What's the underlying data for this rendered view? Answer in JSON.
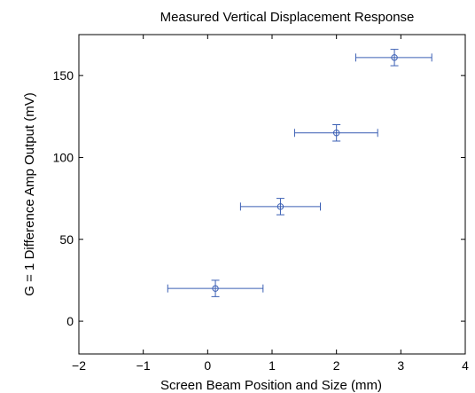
{
  "chart_data": {
    "type": "scatter",
    "title": "Measured Vertical Displacement Response",
    "xlabel": "Screen Beam Position and Size (mm)",
    "ylabel": "G = 1 Difference Amp Output (mV)",
    "xlim": [
      -2,
      4
    ],
    "ylim": [
      -20,
      175
    ],
    "xticks": [
      -2,
      -1,
      0,
      1,
      2,
      3,
      4
    ],
    "yticks": [
      0,
      50,
      100,
      150
    ],
    "grid": false,
    "series": [
      {
        "marker": "circle",
        "color": "#3b5fb4",
        "points": [
          {
            "x": 0.12,
            "y": 20,
            "xerr_low": -0.62,
            "xerr_high": 0.86,
            "yerr_low": 15,
            "yerr_high": 25
          },
          {
            "x": 1.13,
            "y": 70,
            "xerr_low": 0.51,
            "xerr_high": 1.75,
            "yerr_low": 65,
            "yerr_high": 75
          },
          {
            "x": 2.0,
            "y": 115,
            "xerr_low": 1.35,
            "xerr_high": 2.64,
            "yerr_low": 110,
            "yerr_high": 120
          },
          {
            "x": 2.9,
            "y": 161,
            "xerr_low": 2.3,
            "xerr_high": 3.48,
            "yerr_low": 156,
            "yerr_high": 166
          }
        ]
      }
    ]
  }
}
